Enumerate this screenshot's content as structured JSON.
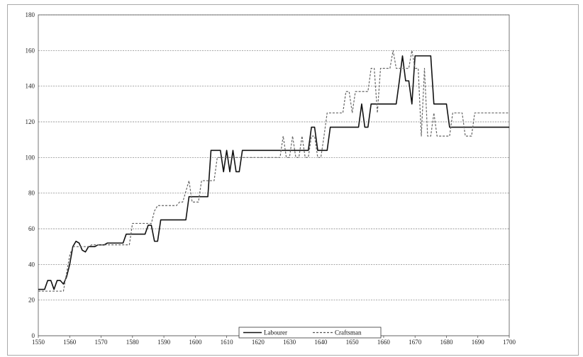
{
  "chart_data": {
    "type": "line",
    "title": "",
    "xlabel": "",
    "ylabel": "",
    "xlim": [
      1550,
      1700
    ],
    "ylim": [
      0,
      180
    ],
    "x_ticks": [
      1550,
      1560,
      1570,
      1580,
      1590,
      1600,
      1610,
      1620,
      1630,
      1640,
      1650,
      1660,
      1670,
      1680,
      1690,
      1700
    ],
    "y_ticks": [
      0,
      20,
      40,
      60,
      80,
      100,
      120,
      140,
      160,
      180
    ],
    "grid": "horizontal dashed",
    "legend_position": "bottom-center",
    "series": [
      {
        "name": "Labourer",
        "style": "solid",
        "color": "#111111",
        "points": [
          [
            1550,
            26
          ],
          [
            1552,
            26
          ],
          [
            1553,
            31
          ],
          [
            1554,
            31
          ],
          [
            1555,
            26
          ],
          [
            1556,
            31
          ],
          [
            1557,
            31
          ],
          [
            1558,
            29
          ],
          [
            1559,
            33
          ],
          [
            1560,
            40
          ],
          [
            1561,
            50
          ],
          [
            1562,
            53
          ],
          [
            1563,
            52
          ],
          [
            1564,
            48
          ],
          [
            1565,
            47
          ],
          [
            1566,
            50
          ],
          [
            1568,
            50
          ],
          [
            1569,
            51
          ],
          [
            1571,
            51
          ],
          [
            1572,
            52
          ],
          [
            1577,
            52
          ],
          [
            1578,
            57
          ],
          [
            1584,
            57
          ],
          [
            1585,
            62
          ],
          [
            1586,
            62
          ],
          [
            1587,
            53
          ],
          [
            1588,
            53
          ],
          [
            1589,
            65
          ],
          [
            1597,
            65
          ],
          [
            1598,
            78
          ],
          [
            1604,
            78
          ],
          [
            1605,
            104
          ],
          [
            1608,
            104
          ],
          [
            1609,
            92
          ],
          [
            1610,
            104
          ],
          [
            1611,
            92
          ],
          [
            1612,
            104
          ],
          [
            1613,
            92
          ],
          [
            1614,
            92
          ],
          [
            1615,
            104
          ],
          [
            1617,
            104
          ],
          [
            1630,
            104
          ],
          [
            1636,
            104
          ],
          [
            1637,
            117
          ],
          [
            1638,
            117
          ],
          [
            1639,
            104
          ],
          [
            1641,
            104
          ],
          [
            1642,
            104
          ],
          [
            1643,
            117
          ],
          [
            1652,
            117
          ],
          [
            1653,
            130
          ],
          [
            1654,
            117
          ],
          [
            1655,
            117
          ],
          [
            1656,
            130
          ],
          [
            1664,
            130
          ],
          [
            1665,
            143
          ],
          [
            1666,
            157
          ],
          [
            1667,
            143
          ],
          [
            1668,
            143
          ],
          [
            1669,
            130
          ],
          [
            1670,
            157
          ],
          [
            1675,
            157
          ],
          [
            1676,
            130
          ],
          [
            1680,
            130
          ],
          [
            1681,
            117
          ],
          [
            1700,
            117
          ]
        ]
      },
      {
        "name": "Craftsman",
        "style": "dashed",
        "color": "#666666",
        "points": [
          [
            1550,
            25
          ],
          [
            1557,
            25
          ],
          [
            1558,
            25
          ],
          [
            1559,
            35
          ],
          [
            1560,
            45
          ],
          [
            1561,
            50
          ],
          [
            1566,
            50
          ],
          [
            1567,
            51
          ],
          [
            1579,
            51
          ],
          [
            1580,
            63
          ],
          [
            1586,
            63
          ],
          [
            1587,
            70
          ],
          [
            1588,
            73
          ],
          [
            1594,
            73
          ],
          [
            1595,
            75
          ],
          [
            1596,
            75
          ],
          [
            1598,
            87
          ],
          [
            1599,
            75
          ],
          [
            1601,
            75
          ],
          [
            1602,
            87
          ],
          [
            1606,
            87
          ],
          [
            1607,
            100
          ],
          [
            1613,
            100
          ],
          [
            1614,
            100
          ],
          [
            1627,
            100
          ],
          [
            1628,
            112
          ],
          [
            1629,
            100
          ],
          [
            1630,
            100
          ],
          [
            1631,
            112
          ],
          [
            1632,
            100
          ],
          [
            1633,
            100
          ],
          [
            1634,
            112
          ],
          [
            1635,
            100
          ],
          [
            1636,
            100
          ],
          [
            1637,
            112
          ],
          [
            1638,
            112
          ],
          [
            1639,
            100
          ],
          [
            1640,
            100
          ],
          [
            1641,
            112
          ],
          [
            1642,
            125
          ],
          [
            1647,
            125
          ],
          [
            1648,
            137
          ],
          [
            1649,
            137
          ],
          [
            1650,
            125
          ],
          [
            1651,
            137
          ],
          [
            1655,
            137
          ],
          [
            1656,
            150
          ],
          [
            1657,
            150
          ],
          [
            1658,
            125
          ],
          [
            1659,
            150
          ],
          [
            1660,
            150
          ],
          [
            1661,
            150
          ],
          [
            1662,
            150
          ],
          [
            1663,
            160
          ],
          [
            1664,
            150
          ],
          [
            1668,
            150
          ],
          [
            1669,
            160
          ],
          [
            1670,
            150
          ],
          [
            1671,
            150
          ],
          [
            1672,
            112
          ],
          [
            1673,
            150
          ],
          [
            1674,
            112
          ],
          [
            1675,
            112
          ],
          [
            1676,
            125
          ],
          [
            1677,
            112
          ],
          [
            1678,
            112
          ],
          [
            1681,
            112
          ],
          [
            1682,
            125
          ],
          [
            1685,
            125
          ],
          [
            1686,
            112
          ],
          [
            1688,
            112
          ],
          [
            1689,
            125
          ],
          [
            1700,
            125
          ]
        ]
      }
    ]
  }
}
